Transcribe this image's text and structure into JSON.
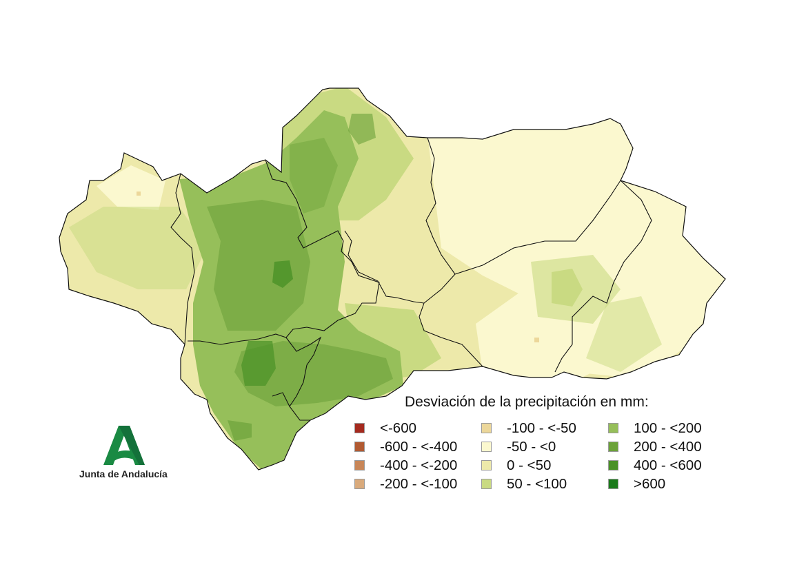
{
  "legend": {
    "title": "Desviación de la precipitación en mm:",
    "items": [
      {
        "label": "<-600",
        "color": "#a52a1e"
      },
      {
        "label": "-600 - <-400",
        "color": "#b15a32"
      },
      {
        "label": "-400 - <-200",
        "color": "#c88658"
      },
      {
        "label": "-200 - <-100",
        "color": "#d9aa7c"
      },
      {
        "label": "-100 - <-50",
        "color": "#ecd79a"
      },
      {
        "label": "-50 - <0",
        "color": "#fbf8cf"
      },
      {
        "label": "0 - <50",
        "color": "#ede9aa"
      },
      {
        "label": "50 - <100",
        "color": "#c9da82"
      },
      {
        "label": "100 - <200",
        "color": "#96bf5a"
      },
      {
        "label": "200 - <400",
        "color": "#6ca23a"
      },
      {
        "label": "400 - <600",
        "color": "#4a9127"
      },
      {
        "label": ">600",
        "color": "#1b7a1b"
      }
    ]
  },
  "logo": {
    "text": "Junta de Andalucía",
    "color": "#1a8a43"
  },
  "map": {
    "outline_color": "#111111"
  }
}
